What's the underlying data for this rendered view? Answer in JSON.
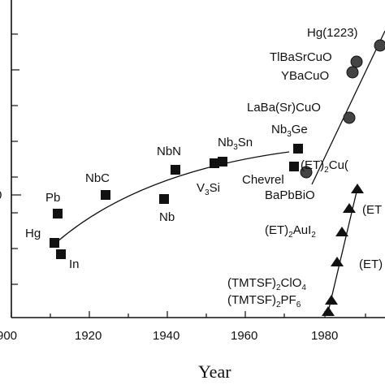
{
  "chart_data": {
    "type": "scatter",
    "xlabel": "Year",
    "xlim": [
      1900,
      1990
    ],
    "ylim": [
      0,
      140
    ],
    "x_ticks": [
      "900",
      "1920",
      "1940",
      "1960",
      "1980"
    ],
    "y_partial_label": "0",
    "series": [
      {
        "name": "",
        "marker": "square",
        "points": [
          {
            "x": 1911,
            "y": 4.2,
            "label": "Hg"
          },
          {
            "x": 1912,
            "y": 3.4,
            "label": "In"
          },
          {
            "x": 1913,
            "y": 7.2,
            "label": "Pb"
          },
          {
            "x": 1930,
            "y": 9.2,
            "label": "NbC"
          },
          {
            "x": 1941,
            "y": 16.0,
            "label": "NbN"
          },
          {
            "x": 1938,
            "y": 8.5,
            "label": "Nb"
          },
          {
            "x": 1953,
            "y": 18.0,
            "label": "Nb3Sn"
          },
          {
            "x": 1956,
            "y": 17.1,
            "label": "V3Si"
          },
          {
            "x": 1973,
            "y": 23.2,
            "label": "Nb3Ge"
          },
          {
            "x": 1972,
            "y": 15.0,
            "label": "Chevrel"
          }
        ]
      },
      {
        "name": "",
        "marker": "circle",
        "points": [
          {
            "x": 1986,
            "y": 30,
            "label": "LaBa(Sr)CuO"
          },
          {
            "x": 1987,
            "y": 92,
            "label": "YBaCuO"
          },
          {
            "x": 1988,
            "y": 110,
            "label": "TlBaSrCuO"
          },
          {
            "x": 1993,
            "y": 133,
            "label": "Hg(1223)"
          },
          {
            "x": 1975,
            "y": 13,
            "label": "BaPbBiO"
          }
        ]
      },
      {
        "name": "",
        "marker": "triangle",
        "points": [
          {
            "x": 1980,
            "y": 0.9,
            "label": "(TMTSF)2PF6"
          },
          {
            "x": 1981,
            "y": 1.2,
            "label": "(TMTSF)2ClO4"
          },
          {
            "x": 1984,
            "y": 2.5,
            "label": "(ET)2AuI2"
          },
          {
            "x": 1983,
            "y": 1.4,
            "label": "(ET)..."
          },
          {
            "x": 1987,
            "y": 10.4,
            "label": "(ET)2Cu(..."
          },
          {
            "x": 1985,
            "y": 5,
            "label": "(ET)..."
          }
        ]
      }
    ],
    "annotations": {
      "hg": "Hg",
      "in": "In",
      "pb": "Pb",
      "nbc": "NbC",
      "nbn": "NbN",
      "nb": "Nb",
      "v3si_main": "V",
      "v3si_sub": "3",
      "v3si_tail": "Si",
      "nb3sn_main": "Nb",
      "nb3sn_sub": "3",
      "nb3sn_tail": "Sn",
      "nb3ge_main": "Nb",
      "nb3ge_sub": "3",
      "nb3ge_tail": "Ge",
      "chevrel": "Chevrel",
      "bapbbio": "BaPbBiO",
      "labasrcuo": "LaBa(Sr)CuO",
      "ybacuo": "YBaCuO",
      "tlbasrcuo": "TlBaSrCuO",
      "hg1223": "Hg(1223)",
      "etcu_main": "(ET)",
      "etcu_sub": "2",
      "etcu_tail": "Cu(",
      "etr1": "(ET",
      "etaui_main": "(ET)",
      "etaui_sub": "2",
      "etaui_mid": "AuI",
      "etaui_sub2": "2",
      "etr2": "(ET)",
      "clo4_main": "(TMTSF)",
      "clo4_sub": "2",
      "clo4_mid": "ClO",
      "clo4_sub2": "4",
      "pf6_main": "(TMTSF)",
      "pf6_sub": "2",
      "pf6_mid": "PF",
      "pf6_sub2": "6"
    }
  }
}
